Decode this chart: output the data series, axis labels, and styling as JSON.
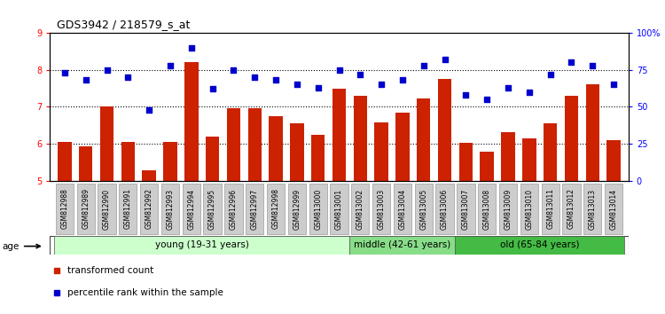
{
  "title": "GDS3942 / 218579_s_at",
  "samples": [
    "GSM812988",
    "GSM812989",
    "GSM812990",
    "GSM812991",
    "GSM812992",
    "GSM812993",
    "GSM812994",
    "GSM812995",
    "GSM812996",
    "GSM812997",
    "GSM812998",
    "GSM812999",
    "GSM813000",
    "GSM813001",
    "GSM813002",
    "GSM813003",
    "GSM813004",
    "GSM813005",
    "GSM813006",
    "GSM813007",
    "GSM813008",
    "GSM813009",
    "GSM813010",
    "GSM813011",
    "GSM813012",
    "GSM813013",
    "GSM813014"
  ],
  "bar_values": [
    6.05,
    5.93,
    7.0,
    6.05,
    5.28,
    6.05,
    8.2,
    6.18,
    6.95,
    6.95,
    6.75,
    6.55,
    6.25,
    7.5,
    7.3,
    6.58,
    6.85,
    7.22,
    7.75,
    6.03,
    5.78,
    6.3,
    6.15,
    6.55,
    7.3,
    7.6,
    6.1
  ],
  "percentile_values": [
    73,
    68,
    75,
    70,
    48,
    78,
    90,
    62,
    75,
    70,
    68,
    65,
    63,
    75,
    72,
    65,
    68,
    78,
    82,
    58,
    55,
    63,
    60,
    72,
    80,
    78,
    65
  ],
  "bar_color": "#cc2200",
  "dot_color": "#0000cc",
  "ylim_left": [
    5,
    9
  ],
  "ylim_right": [
    0,
    100
  ],
  "yticks_left": [
    5,
    6,
    7,
    8,
    9
  ],
  "yticks_right": [
    0,
    25,
    50,
    75,
    100
  ],
  "ytick_labels_right": [
    "0",
    "25",
    "50",
    "75",
    "100%"
  ],
  "groups": [
    {
      "label": "young (19-31 years)",
      "start": 0,
      "end": 14,
      "color": "#ccffcc"
    },
    {
      "label": "middle (42-61 years)",
      "start": 14,
      "end": 19,
      "color": "#88dd88"
    },
    {
      "label": "old (65-84 years)",
      "start": 19,
      "end": 27,
      "color": "#44bb44"
    }
  ],
  "age_label": "age",
  "legend_items": [
    {
      "label": "transformed count",
      "color": "#cc2200"
    },
    {
      "label": "percentile rank within the sample",
      "color": "#0000cc"
    }
  ],
  "xtick_bg": "#d0d0d0",
  "grid_yticks": [
    6,
    7,
    8
  ]
}
